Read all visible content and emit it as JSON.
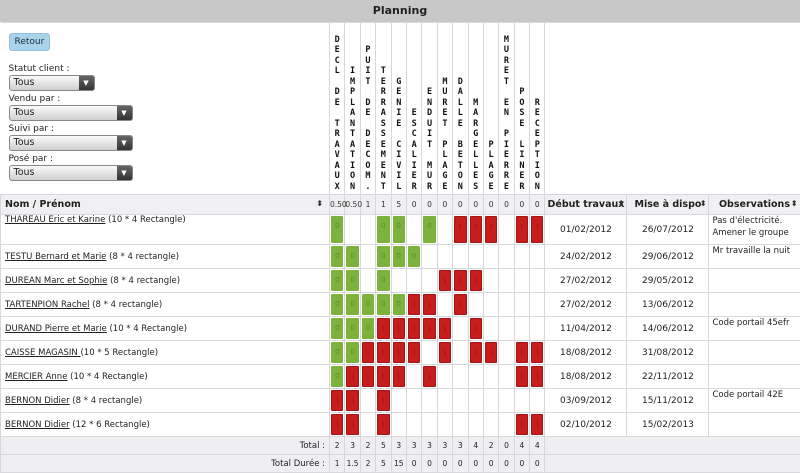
{
  "window": {
    "title": "Planning"
  },
  "toolbar": {
    "back_label": "Retour"
  },
  "filters": [
    {
      "label": "Statut client :",
      "value": "Tous"
    },
    {
      "label": "Vendu par :",
      "value": "Tous"
    },
    {
      "label": "Suivi par :",
      "value": "Tous"
    },
    {
      "label": "Posé par :",
      "value": "Tous"
    }
  ],
  "table": {
    "name_header": "Nom / Prénom",
    "task_columns": [
      {
        "label": "DECL DE TRAVAUX",
        "duration": "0.50"
      },
      {
        "label": "IMPLANTATION",
        "duration": "0.50"
      },
      {
        "label": "PUIT DE DECOM.",
        "duration": "1"
      },
      {
        "label": "TERRASSEMENT",
        "duration": "1"
      },
      {
        "label": "GENIE CIVIL",
        "duration": "5"
      },
      {
        "label": "ESCALIER",
        "duration": "0"
      },
      {
        "label": "ENDUIT MUR",
        "duration": "0"
      },
      {
        "label": "MURET PLAGE",
        "duration": "0"
      },
      {
        "label": "DALLE BETON",
        "duration": "0"
      },
      {
        "label": "MARGELLES",
        "duration": "0"
      },
      {
        "label": "PLAGE",
        "duration": "0"
      },
      {
        "label": "MURET EN PIERRE",
        "duration": "0"
      },
      {
        "label": "POSE LINER",
        "duration": "0"
      },
      {
        "label": "RECEPTION",
        "duration": "0"
      }
    ],
    "date_headers": {
      "start": "Début travaux",
      "available": "Mise à dispo",
      "observations": "Observations"
    },
    "status_colors": {
      "done": "#7db33d",
      "todo": "#c81d1d"
    },
    "rows": [
      {
        "name": "THAREAU Eric et Karine",
        "detail": " (10 * 4 Rectangle)",
        "cells": "GWWGGWGWRRRWRR",
        "start": "01/02/2012",
        "available": "26/07/2012",
        "obs": "Pas d'électricité. Amener le groupe"
      },
      {
        "name": "TESTU Bernard et Marie",
        "detail": " (8 * 4 rectangle)",
        "cells": "GGWGGGWWWWWWWW",
        "start": "24/02/2012",
        "available": "29/06/2012",
        "obs": "Mr travaille la nuit"
      },
      {
        "name": "DUREAN Marc et Sophie",
        "detail": " (8 * 4 rectangle)",
        "cells": "GGWGWWWRRRWWWW",
        "start": "27/02/2012",
        "available": "29/05/2012",
        "obs": ""
      },
      {
        "name": "TARTENPION Rachel",
        "detail": " (8 * 4 rectangle)",
        "cells": "GGGGGRRWRWWWWW",
        "start": "27/02/2012",
        "available": "13/06/2012",
        "obs": ""
      },
      {
        "name": "DURAND Pierre et Marie",
        "detail": " (10 * 4 Rectangle)",
        "cells": "GGGRRRRRWRWWWW",
        "start": "11/04/2012",
        "available": "14/06/2012",
        "obs": "Code portail 45efr"
      },
      {
        "name": "CAISSE MAGASIN ",
        "detail": "(10 * 5 Rectangle)",
        "cells": "GGRRRRWRWRRWRR",
        "start": "18/08/2012",
        "available": "31/08/2012",
        "obs": ""
      },
      {
        "name": "MERCIER Anne",
        "detail": " (10 * 4 Rectangle)",
        "cells": "GRRRRWRWWWWWRR",
        "start": "18/08/2012",
        "available": "22/11/2012",
        "obs": ""
      },
      {
        "name": "BERNON Didier",
        "detail": " (8 * 4 rectangle)",
        "cells": "RRWRWWWWWWWWWW",
        "start": "03/09/2012",
        "available": "15/11/2012",
        "obs": "Code portail 42E"
      },
      {
        "name": "BERNON Didier",
        "detail": " (12 * 6 Rectangle)",
        "cells": "RRWRWWWWWWWWRR",
        "start": "02/10/2012",
        "available": "15/02/2013",
        "obs": ""
      }
    ],
    "green_cell_value": "0",
    "red_cell_value": "1",
    "totals": {
      "count_label": "Total :",
      "count": [
        "2",
        "3",
        "2",
        "5",
        "3",
        "3",
        "3",
        "3",
        "3",
        "4",
        "2",
        "0",
        "4",
        "4"
      ],
      "duration_label": "Total Durée :",
      "duration": [
        "1",
        "1.5",
        "2",
        "5",
        "15",
        "0",
        "0",
        "0",
        "0",
        "0",
        "0",
        "0",
        "0",
        "0"
      ]
    }
  }
}
